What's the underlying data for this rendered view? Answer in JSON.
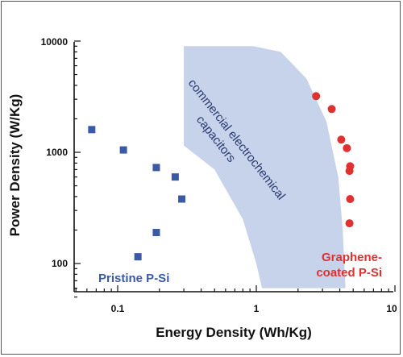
{
  "chart_data": {
    "type": "scatter",
    "xlabel": "Energy Density (Wh/Kg)",
    "ylabel": "Power Density (W/Kg)",
    "x_scale": "log",
    "y_scale": "log",
    "xlim": [
      0.05,
      10
    ],
    "ylim": [
      50,
      10000
    ],
    "x_tick_labels": [
      "0.1",
      "1",
      "10"
    ],
    "y_tick_labels": [
      "100",
      "1000",
      "10000"
    ],
    "grid": false,
    "series": [
      {
        "name": "Pristine P-Si",
        "marker": "square",
        "color": "#3b5aa6",
        "points": [
          [
            0.065,
            1600
          ],
          [
            0.11,
            1050
          ],
          [
            0.19,
            730
          ],
          [
            0.26,
            600
          ],
          [
            0.29,
            380
          ],
          [
            0.19,
            190
          ],
          [
            0.14,
            115
          ]
        ]
      },
      {
        "name": "Graphene-coated P-Si",
        "marker": "circle",
        "color": "#e03030",
        "points": [
          [
            2.7,
            3200
          ],
          [
            3.5,
            2450
          ],
          [
            4.1,
            1300
          ],
          [
            4.5,
            1090
          ],
          [
            4.75,
            750
          ],
          [
            4.7,
            680
          ],
          [
            4.75,
            380
          ],
          [
            4.7,
            230
          ]
        ]
      }
    ],
    "shaded_region": {
      "label": [
        "commercial electrochemical",
        "capacitors"
      ],
      "color": "#c6d3ea",
      "boundary": [
        [
          0.3,
          9000
        ],
        [
          0.95,
          9000
        ],
        [
          1.5,
          8000
        ],
        [
          2.3,
          4600
        ],
        [
          3.2,
          1900
        ],
        [
          3.9,
          600
        ],
        [
          4.2,
          200
        ],
        [
          4.4,
          60
        ],
        [
          1.1,
          60
        ],
        [
          1.0,
          100
        ],
        [
          0.8,
          250
        ],
        [
          0.5,
          700
        ],
        [
          0.3,
          1150
        ]
      ]
    },
    "annotations": [
      {
        "text": [
          "Pristine P-Si"
        ],
        "color": "#3b5aa6"
      },
      {
        "text": [
          "Graphene-",
          "coated P-Si"
        ],
        "color": "#e03030"
      }
    ]
  }
}
